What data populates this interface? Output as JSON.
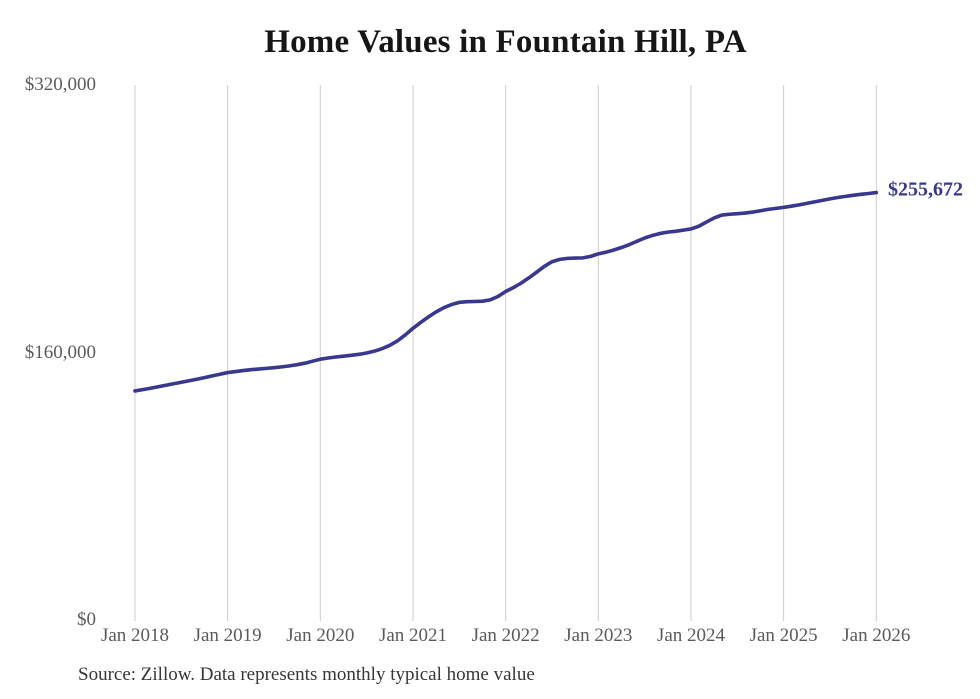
{
  "chart_data": {
    "type": "line",
    "title": "Home Values in Fountain Hill, PA",
    "source_note": "Source: Zillow. Data represents monthly typical home value",
    "end_label": "$255,672",
    "end_value": 255672,
    "x_tick_labels": [
      "Jan 2018",
      "Jan 2019",
      "Jan 2020",
      "Jan 2021",
      "Jan 2022",
      "Jan 2023",
      "Jan 2024",
      "Jan 2025",
      "Jan 2026"
    ],
    "y_ticks": [
      {
        "label": "$320,000",
        "value": 320000
      },
      {
        "label": "$160,000",
        "value": 160000
      },
      {
        "label": "$0",
        "value": 0
      }
    ],
    "ylim": [
      0,
      320000
    ],
    "grid": "vertical-only",
    "legend": "none",
    "x_unit": "month",
    "x_range": "Jan 2018 - Jan 2026",
    "line_color": "#38388f",
    "grid_color": "#cdcdcd",
    "series": [
      {
        "name": "Monthly typical home value",
        "values": [
          137000,
          137800,
          138600,
          139500,
          140400,
          141300,
          142200,
          143100,
          144000,
          145000,
          146000,
          147000,
          148000,
          148600,
          149200,
          149700,
          150100,
          150500,
          150900,
          151400,
          152000,
          152700,
          153600,
          154800,
          156000,
          156700,
          157300,
          157800,
          158300,
          158900,
          159700,
          160800,
          162300,
          164300,
          167000,
          170500,
          174500,
          178000,
          181300,
          184300,
          186800,
          188700,
          190000,
          190400,
          190500,
          190700,
          191500,
          193500,
          196500,
          198800,
          201500,
          204600,
          208000,
          211500,
          214300,
          215700,
          216300,
          216500,
          216600,
          217500,
          219000,
          220000,
          221300,
          222800,
          224500,
          226500,
          228500,
          230000,
          231200,
          232000,
          232500,
          233200,
          233900,
          235500,
          238000,
          240500,
          242200,
          242700,
          243000,
          243400,
          244000,
          244800,
          245600,
          246200,
          246800,
          247500,
          248300,
          249200,
          250100,
          251000,
          251900,
          252700,
          253400,
          254000,
          254600,
          255100,
          255672
        ]
      }
    ]
  }
}
